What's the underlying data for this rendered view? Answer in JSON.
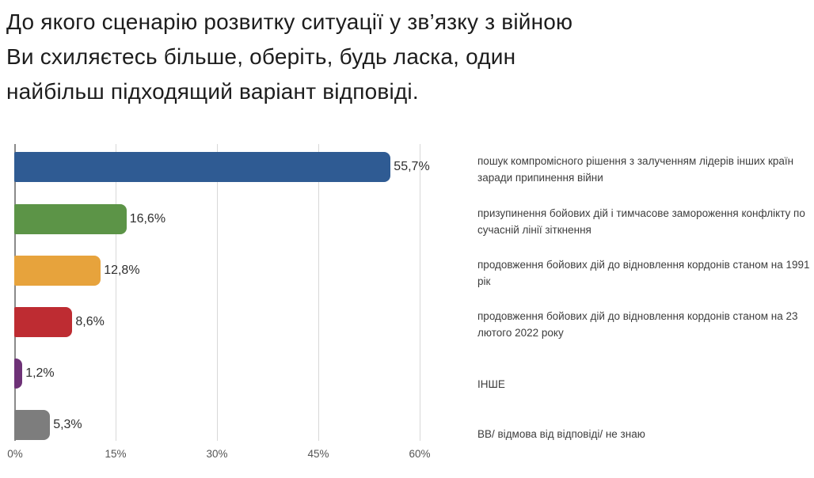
{
  "title": "До якого сценарію розвитку ситуації у зв’язку з війною\nВи схиляєтесь більше, оберіть, будь ласка, один\nнайбільш підходящий варіант відповіді.",
  "chart_data": {
    "type": "bar",
    "orientation": "horizontal",
    "title": "До якого сценарію розвитку ситуації у зв’язку з війною Ви схиляєтесь більше, оберіть, будь ласка, один найбільш підходящий варіант відповіді.",
    "xlabel": "",
    "ylabel": "",
    "x_axis": {
      "ticks": [
        "0%",
        "15%",
        "30%",
        "45%",
        "60%"
      ],
      "range": [
        0,
        64
      ],
      "grid": true
    },
    "legend_position": "right",
    "bars": [
      {
        "value": 55.7,
        "label": "55,7%",
        "color": "#2F5B93",
        "category": "пошук компромісного рішення з залученням лідерів інших країн заради припинення війни"
      },
      {
        "value": 16.6,
        "label": "16,6%",
        "color": "#5C9447",
        "category": "призупинення бойових дій і тимчасове замороження конфлікту по сучасній лінії зіткнення"
      },
      {
        "value": 12.8,
        "label": "12,8%",
        "color": "#E7A33C",
        "category": "продовження бойових дій до відновлення кордонів станом на 1991 рік"
      },
      {
        "value": 8.6,
        "label": "8,6%",
        "color": "#BE2C32",
        "category": "продовження бойових дій до відновлення кордонів станом на 23 лютого 2022 року"
      },
      {
        "value": 1.2,
        "label": "1,2%",
        "color": "#6E3277",
        "category": "ІНШЕ"
      },
      {
        "value": 5.3,
        "label": "5,3%",
        "color": "#7D7D7D",
        "category": "ВВ/ відмова від відповіді/ не знаю"
      }
    ]
  }
}
